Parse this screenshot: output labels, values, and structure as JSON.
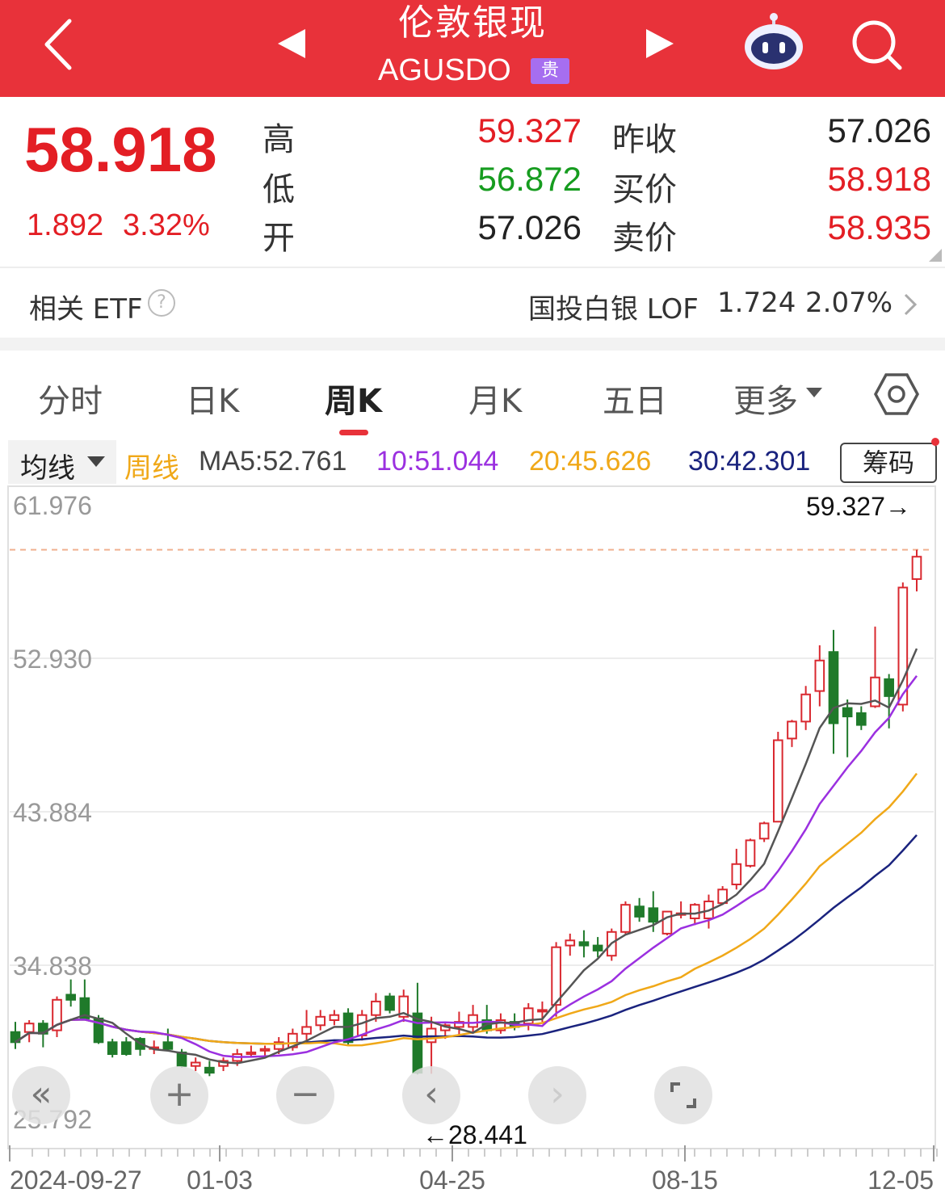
{
  "header": {
    "title": "伦敦银现",
    "symbol": "AGUSDO",
    "tag": "贵",
    "back_icon": "chevron-left-icon",
    "prev_icon": "triangle-left-icon",
    "next_icon": "triangle-right-icon",
    "assistant_icon": "robot-icon",
    "search_icon": "search-icon",
    "color": "#e8323a"
  },
  "quote": {
    "price": "58.918",
    "change": "1.892",
    "change_pct": "3.32%",
    "high_label": "高",
    "high": "59.327",
    "low_label": "低",
    "low": "56.872",
    "open_label": "开",
    "open": "57.026",
    "prev_close_label": "昨收",
    "prev_close": "57.026",
    "bid_label": "买价",
    "bid": "58.918",
    "ask_label": "卖价",
    "ask": "58.935"
  },
  "etf": {
    "label": "相关 ETF",
    "name": "国投白银 LOF",
    "price": "1.724",
    "pct": "2.07%"
  },
  "tabs": [
    {
      "label": "分时"
    },
    {
      "label": "日K"
    },
    {
      "label": "周K",
      "active": true
    },
    {
      "label": "月K"
    },
    {
      "label": "五日"
    },
    {
      "label": "更多"
    }
  ],
  "legend": {
    "ma_select": "均线",
    "period": "周线",
    "ma5": "MA5:52.761",
    "ma10": "10:51.044",
    "ma20": "20:45.626",
    "ma30": "30:42.301",
    "chip_button": "筹码",
    "colors": {
      "ma5": "#555555",
      "ma10": "#9b30e0",
      "ma20": "#f0a818",
      "ma30": "#1a237e",
      "up": "#d9282f",
      "down": "#1f7a2a"
    }
  },
  "chart_data": {
    "type": "candlestick",
    "y_ticks": [
      "61.976",
      "52.930",
      "43.884",
      "34.838",
      "25.792"
    ],
    "ylim": [
      25.792,
      61.976
    ],
    "x_labels": [
      "2024-09-27",
      "01-03",
      "04-25",
      "08-15",
      "12-05"
    ],
    "max_label": "59.327→",
    "min_label": "←28.441",
    "candles": [
      [
        30.9,
        31.5,
        29.9,
        30.3
      ],
      [
        30.9,
        31.6,
        30.3,
        31.4
      ],
      [
        31.4,
        31.6,
        30.0,
        30.8
      ],
      [
        31.0,
        33.0,
        30.6,
        32.8
      ],
      [
        33.1,
        34.0,
        32.4,
        32.8
      ],
      [
        32.9,
        34.0,
        31.6,
        31.7
      ],
      [
        31.7,
        31.9,
        30.2,
        30.3
      ],
      [
        30.3,
        30.5,
        29.4,
        29.6
      ],
      [
        30.3,
        30.6,
        29.5,
        29.6
      ],
      [
        30.5,
        30.6,
        29.5,
        29.9
      ],
      [
        30.0,
        30.4,
        29.6,
        30.0
      ],
      [
        30.3,
        31.1,
        29.8,
        29.9
      ],
      [
        29.7,
        29.9,
        28.8,
        28.9
      ],
      [
        28.9,
        29.4,
        28.6,
        29.1
      ],
      [
        28.8,
        29.2,
        28.3,
        28.5
      ],
      [
        28.9,
        29.4,
        28.6,
        29.2
      ],
      [
        29.2,
        29.9,
        28.9,
        29.6
      ],
      [
        29.6,
        30.1,
        29.4,
        29.7
      ],
      [
        29.8,
        30.1,
        29.5,
        29.9
      ],
      [
        29.9,
        30.6,
        29.6,
        30.3
      ],
      [
        30.0,
        31.1,
        29.8,
        30.8
      ],
      [
        30.8,
        32.2,
        30.3,
        31.2
      ],
      [
        31.3,
        32.2,
        31.0,
        31.8
      ],
      [
        31.6,
        32.2,
        31.3,
        31.9
      ],
      [
        32.0,
        32.3,
        30.1,
        30.3
      ],
      [
        30.7,
        32.2,
        30.4,
        31.9
      ],
      [
        31.9,
        33.2,
        31.5,
        32.7
      ],
      [
        33.0,
        33.2,
        32.0,
        32.2
      ],
      [
        31.8,
        33.4,
        31.5,
        33.0
      ],
      [
        32.0,
        33.8,
        28.4,
        28.5
      ],
      [
        30.3,
        31.8,
        28.441,
        31.1
      ],
      [
        31.0,
        31.4,
        30.5,
        31.3
      ],
      [
        31.2,
        32.1,
        30.7,
        31.5
      ],
      [
        31.2,
        32.5,
        30.8,
        31.9
      ],
      [
        31.6,
        32.5,
        30.8,
        31.0
      ],
      [
        31.0,
        32.0,
        30.8,
        31.6
      ],
      [
        31.5,
        32.0,
        31.0,
        31.2
      ],
      [
        31.4,
        32.6,
        31.0,
        32.3
      ],
      [
        32.2,
        32.7,
        31.5,
        32.2
      ],
      [
        32.5,
        36.2,
        31.8,
        35.9
      ],
      [
        36.0,
        36.7,
        35.4,
        36.3
      ],
      [
        36.2,
        36.9,
        35.3,
        36.0
      ],
      [
        36.0,
        36.5,
        35.3,
        35.7
      ],
      [
        35.4,
        37.0,
        35.1,
        36.8
      ],
      [
        36.8,
        38.6,
        36.6,
        38.4
      ],
      [
        38.3,
        38.8,
        37.4,
        37.7
      ],
      [
        38.2,
        39.2,
        36.8,
        37.4
      ],
      [
        36.7,
        38.0,
        36.6,
        38.0
      ],
      [
        37.9,
        38.6,
        37.6,
        37.9
      ],
      [
        37.6,
        38.5,
        37.2,
        38.4
      ],
      [
        37.6,
        39.0,
        37.0,
        38.6
      ],
      [
        38.5,
        39.5,
        38.4,
        39.3
      ],
      [
        39.6,
        41.7,
        39.3,
        40.8
      ],
      [
        40.7,
        42.3,
        40.6,
        42.2
      ],
      [
        42.3,
        43.3,
        42.1,
        43.2
      ],
      [
        43.3,
        48.6,
        43.3,
        48.1
      ],
      [
        48.2,
        49.3,
        47.7,
        49.2
      ],
      [
        49.2,
        51.3,
        48.7,
        50.8
      ],
      [
        51.0,
        53.7,
        50.1,
        52.8
      ],
      [
        53.3,
        54.6,
        47.3,
        49.1
      ],
      [
        50.0,
        50.5,
        47.1,
        49.5
      ],
      [
        49.7,
        50.1,
        48.7,
        49.0
      ],
      [
        50.1,
        54.8,
        50.0,
        51.8
      ],
      [
        51.7,
        52.0,
        48.8,
        50.7
      ],
      [
        50.2,
        57.4,
        49.8,
        57.1
      ],
      [
        57.6,
        59.327,
        56.872,
        58.918
      ]
    ]
  }
}
